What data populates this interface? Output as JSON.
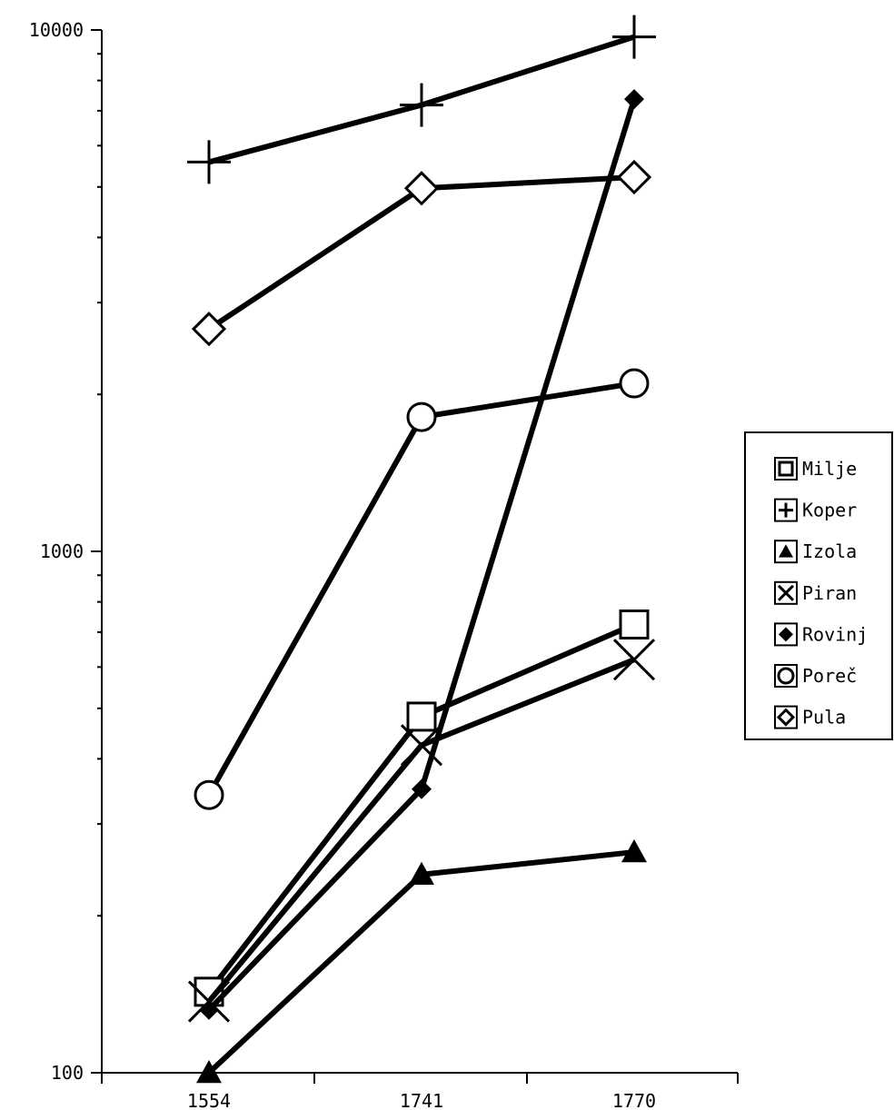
{
  "chart_data": {
    "type": "line",
    "title": "",
    "xlabel": "",
    "ylabel": "",
    "y_scale": "log",
    "ylim": [
      100,
      10000
    ],
    "grid": false,
    "legend_position": "right",
    "categories": [
      "1554",
      "1741",
      "1770"
    ],
    "y_ticks": [
      100,
      1000,
      10000
    ],
    "y_tick_labels": [
      "100",
      "1000",
      "10000"
    ],
    "series": [
      {
        "name": "Milje",
        "marker": "square-open",
        "values": [
          143,
          482,
          724
        ]
      },
      {
        "name": "Koper",
        "marker": "plus",
        "values": [
          5580,
          7180,
          9700
        ]
      },
      {
        "name": "Izola",
        "marker": "triangle-filled",
        "values": [
          100,
          240,
          265
        ]
      },
      {
        "name": "Piran",
        "marker": "x",
        "values": [
          137,
          425,
          620
        ]
      },
      {
        "name": "Rovinj",
        "marker": "diamond-filled",
        "values": [
          132,
          350,
          7370
        ]
      },
      {
        "name": "Poreč",
        "marker": "circle-open",
        "values": [
          341,
          1810,
          2100
        ]
      },
      {
        "name": "Pula",
        "marker": "diamond-open",
        "values": [
          2670,
          4970,
          5220
        ]
      }
    ]
  }
}
